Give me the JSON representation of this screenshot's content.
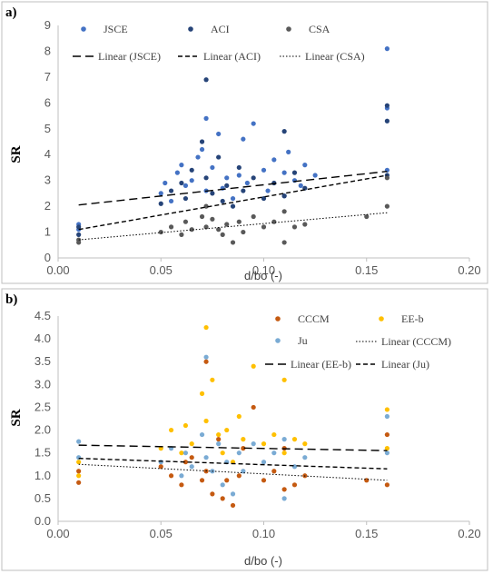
{
  "chart_data": [
    {
      "type": "scatter",
      "panel_label": "a)",
      "xlabel": "d/bo (-)",
      "ylabel": "SR",
      "xlim": [
        0,
        0.2
      ],
      "ylim": [
        0,
        9
      ],
      "xticks": [
        "0.00",
        "0.05",
        "0.10",
        "0.15",
        "0.20"
      ],
      "yticks": [
        "0",
        "1",
        "2",
        "3",
        "4",
        "5",
        "6",
        "7",
        "8",
        "9"
      ],
      "grid": false,
      "legend_position": "top",
      "colors": {
        "JSCE": "#4472c4",
        "ACI": "#264478",
        "CSA": "#595959"
      },
      "series": [
        {
          "name": "JSCE",
          "color": "#4472c4",
          "x": [
            0.01,
            0.01,
            0.05,
            0.052,
            0.055,
            0.058,
            0.06,
            0.062,
            0.065,
            0.068,
            0.07,
            0.072,
            0.072,
            0.075,
            0.078,
            0.08,
            0.082,
            0.085,
            0.088,
            0.09,
            0.092,
            0.095,
            0.1,
            0.102,
            0.105,
            0.11,
            0.11,
            0.112,
            0.115,
            0.118,
            0.12,
            0.125,
            0.16,
            0.16,
            0.16
          ],
          "y": [
            1.3,
            1.1,
            2.5,
            2.9,
            2.2,
            3.3,
            3.6,
            2.8,
            3.0,
            3.9,
            4.2,
            5.4,
            2.6,
            3.5,
            4.8,
            2.7,
            3.1,
            2.3,
            3.2,
            4.6,
            2.9,
            5.2,
            3.4,
            2.6,
            3.8,
            3.3,
            2.4,
            4.1,
            3.0,
            2.8,
            3.6,
            3.2,
            8.1,
            5.8,
            3.4
          ]
        },
        {
          "name": "ACI",
          "color": "#264478",
          "x": [
            0.01,
            0.01,
            0.05,
            0.055,
            0.06,
            0.062,
            0.065,
            0.07,
            0.072,
            0.072,
            0.075,
            0.078,
            0.08,
            0.082,
            0.085,
            0.088,
            0.09,
            0.095,
            0.1,
            0.105,
            0.11,
            0.11,
            0.115,
            0.12,
            0.16,
            0.16,
            0.16
          ],
          "y": [
            1.2,
            0.9,
            2.1,
            2.6,
            2.9,
            2.3,
            3.4,
            4.5,
            6.9,
            3.1,
            2.5,
            3.9,
            2.2,
            2.8,
            2.0,
            3.5,
            2.6,
            3.1,
            2.3,
            2.9,
            4.9,
            2.4,
            3.3,
            2.7,
            5.9,
            5.3,
            3.2
          ]
        },
        {
          "name": "CSA",
          "color": "#595959",
          "x": [
            0.01,
            0.01,
            0.05,
            0.055,
            0.06,
            0.062,
            0.065,
            0.07,
            0.072,
            0.072,
            0.075,
            0.078,
            0.08,
            0.082,
            0.085,
            0.088,
            0.09,
            0.095,
            0.1,
            0.105,
            0.11,
            0.11,
            0.115,
            0.12,
            0.15,
            0.16,
            0.16
          ],
          "y": [
            0.7,
            0.6,
            1.0,
            1.2,
            0.9,
            1.4,
            1.1,
            1.6,
            2.0,
            1.2,
            1.5,
            1.1,
            0.9,
            1.3,
            0.6,
            1.4,
            1.0,
            1.6,
            1.2,
            1.4,
            1.8,
            0.6,
            1.2,
            1.3,
            1.6,
            3.1,
            2.0
          ]
        }
      ],
      "trendlines": [
        {
          "name": "Linear (JSCE)",
          "style": "long-dash",
          "x": [
            0.01,
            0.16
          ],
          "y": [
            2.05,
            3.35
          ]
        },
        {
          "name": "Linear (ACI)",
          "style": "dash",
          "x": [
            0.01,
            0.16
          ],
          "y": [
            1.1,
            3.2
          ]
        },
        {
          "name": "Linear (CSA)",
          "style": "dot",
          "x": [
            0.01,
            0.16
          ],
          "y": [
            0.7,
            1.75
          ]
        }
      ]
    },
    {
      "type": "scatter",
      "panel_label": "b)",
      "xlabel": "d/bo (-)",
      "ylabel": "SR",
      "xlim": [
        0,
        0.2
      ],
      "ylim": [
        0,
        4.5
      ],
      "xticks": [
        "0.00",
        "0.05",
        "0.10",
        "0.15",
        "0.20"
      ],
      "yticks": [
        "0.0",
        "0.5",
        "1.0",
        "1.5",
        "2.0",
        "2.5",
        "3.0",
        "3.5",
        "4.0",
        "4.5"
      ],
      "grid": false,
      "legend_position": "top-right",
      "colors": {
        "CCCM": "#c55a11",
        "EE-b": "#ffc000",
        "Ju": "#7aabd4"
      },
      "series": [
        {
          "name": "CCCM",
          "color": "#c55a11",
          "x": [
            0.01,
            0.01,
            0.05,
            0.055,
            0.06,
            0.062,
            0.065,
            0.07,
            0.072,
            0.072,
            0.075,
            0.078,
            0.08,
            0.082,
            0.085,
            0.088,
            0.09,
            0.095,
            0.1,
            0.105,
            0.11,
            0.11,
            0.115,
            0.12,
            0.15,
            0.16,
            0.16
          ],
          "y": [
            0.85,
            1.1,
            1.2,
            1.0,
            0.8,
            1.3,
            1.4,
            0.9,
            3.5,
            1.1,
            0.6,
            1.8,
            0.5,
            0.9,
            0.35,
            1.0,
            1.6,
            2.5,
            0.9,
            1.1,
            1.6,
            0.7,
            0.8,
            1.0,
            0.9,
            1.9,
            0.8
          ]
        },
        {
          "name": "EE-b",
          "color": "#ffc000",
          "x": [
            0.01,
            0.01,
            0.05,
            0.055,
            0.06,
            0.062,
            0.065,
            0.07,
            0.072,
            0.072,
            0.075,
            0.078,
            0.08,
            0.082,
            0.085,
            0.088,
            0.09,
            0.095,
            0.1,
            0.105,
            0.11,
            0.11,
            0.115,
            0.12,
            0.16,
            0.16
          ],
          "y": [
            1.0,
            1.3,
            1.6,
            2.0,
            1.5,
            2.1,
            1.7,
            2.8,
            4.25,
            2.2,
            3.1,
            1.9,
            1.5,
            2.0,
            1.3,
            2.3,
            1.8,
            3.4,
            1.7,
            1.9,
            3.1,
            1.5,
            1.8,
            1.7,
            2.45,
            1.6
          ]
        },
        {
          "name": "Ju",
          "color": "#7aabd4",
          "x": [
            0.01,
            0.01,
            0.05,
            0.055,
            0.06,
            0.062,
            0.065,
            0.07,
            0.072,
            0.072,
            0.075,
            0.078,
            0.08,
            0.082,
            0.085,
            0.088,
            0.09,
            0.095,
            0.1,
            0.105,
            0.11,
            0.11,
            0.115,
            0.12,
            0.16,
            0.16
          ],
          "y": [
            1.75,
            1.4,
            1.3,
            1.6,
            1.0,
            1.5,
            1.2,
            1.9,
            3.6,
            1.4,
            1.1,
            1.7,
            0.8,
            1.3,
            0.6,
            1.5,
            1.1,
            1.7,
            1.3,
            1.5,
            1.8,
            0.5,
            1.2,
            1.4,
            2.3,
            1.5
          ]
        }
      ],
      "trendlines": [
        {
          "name": "Linear (CCCM)",
          "style": "dot",
          "x": [
            0.01,
            0.16
          ],
          "y": [
            1.25,
            0.9
          ]
        },
        {
          "name": "Linear (EE-b)",
          "style": "long-dash",
          "x": [
            0.01,
            0.16
          ],
          "y": [
            1.67,
            1.55
          ]
        },
        {
          "name": "Linear (Ju)",
          "style": "dash",
          "x": [
            0.01,
            0.16
          ],
          "y": [
            1.38,
            1.15
          ]
        }
      ]
    }
  ]
}
